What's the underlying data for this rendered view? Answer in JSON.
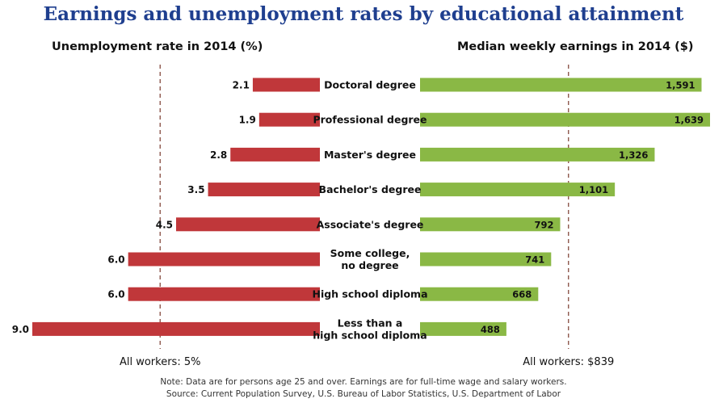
{
  "title": "Earnings and unemployment rates by educational attainment",
  "left_title": "Unemployment rate in 2014 (%)",
  "right_title": "Median weekly earnings in 2014 ($)",
  "left_reference_label": "All workers: 5%",
  "right_reference_label": "All workers: $839",
  "note": "Note: Data are for persons age 25 and over. Earnings are for full-time wage and salary workers.",
  "source": "Source: Current Population Survey, U.S. Bureau of Labor Statistics, U.S. Department of Labor",
  "colors": {
    "unemployment": "#c0373a",
    "earnings": "#8ab845",
    "title": "#1f3f8f",
    "reference_line": "#7a3b2e"
  },
  "chart_data": [
    {
      "type": "bar",
      "orientation": "horizontal",
      "direction": "leftward",
      "title": "Unemployment rate in 2014 (%)",
      "categories": [
        [
          "Doctoral degree"
        ],
        [
          "Professional degree"
        ],
        [
          "Master's degree"
        ],
        [
          "Bachelor's degree"
        ],
        [
          "Associate's degree"
        ],
        [
          "Some college,",
          "no degree"
        ],
        [
          "High school diploma"
        ],
        [
          "Less than a",
          "high school diploma"
        ]
      ],
      "values": [
        2.1,
        1.9,
        2.8,
        3.5,
        4.5,
        6.0,
        6.0,
        9.0
      ],
      "value_labels": [
        "2.1",
        "1.9",
        "2.8",
        "3.5",
        "4.5",
        "6.0",
        "6.0",
        "9.0"
      ],
      "reference_value": 5,
      "reference_label": "All workers: 5%",
      "xlim": [
        0,
        9
      ],
      "grid": false
    },
    {
      "type": "bar",
      "orientation": "horizontal",
      "direction": "rightward",
      "title": "Median weekly earnings in 2014 ($)",
      "categories": [
        [
          "Doctoral degree"
        ],
        [
          "Professional degree"
        ],
        [
          "Master's degree"
        ],
        [
          "Bachelor's degree"
        ],
        [
          "Associate's degree"
        ],
        [
          "Some college,",
          "no degree"
        ],
        [
          "High school diploma"
        ],
        [
          "Less than a",
          "high school diploma"
        ]
      ],
      "values": [
        1591,
        1639,
        1326,
        1101,
        792,
        741,
        668,
        488
      ],
      "value_labels": [
        "1,591",
        "1,639",
        "1,326",
        "1,101",
        "792",
        "741",
        "668",
        "488"
      ],
      "reference_value": 839,
      "reference_label": "All workers: $839",
      "xlim": [
        0,
        1639
      ],
      "grid": false
    }
  ]
}
